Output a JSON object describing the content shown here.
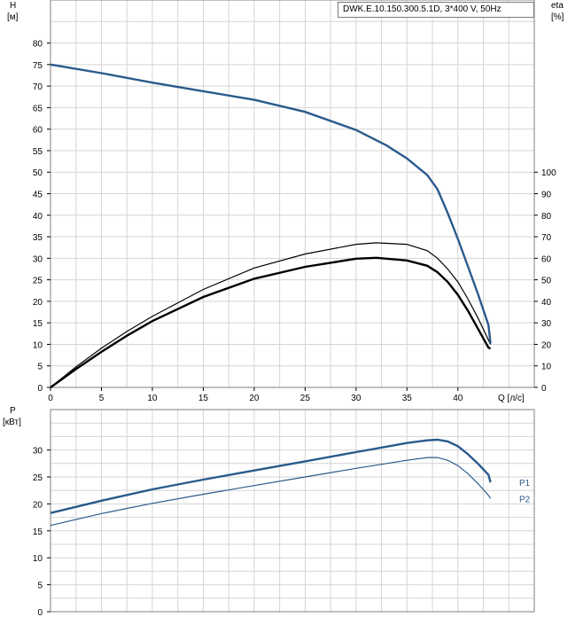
{
  "chart_data": [
    {
      "type": "line",
      "name": "head-efficiency",
      "title": "DWK.E.10.150.300.5.1D, 3*400 V, 50Hz",
      "xlabel": "Q [л/с]",
      "ylabel": "H",
      "ylabel_unit": "[м]",
      "y2label": "eta",
      "y2label_unit": "[%]",
      "xlim": [
        0,
        47.5
      ],
      "ylim": [
        0,
        90
      ],
      "y2lim": [
        0,
        180
      ],
      "x_ticks": [
        0,
        5,
        10,
        15,
        20,
        25,
        30,
        35,
        40
      ],
      "y_ticks": [
        0,
        5,
        10,
        15,
        20,
        25,
        30,
        35,
        40,
        45,
        50,
        55,
        60,
        65,
        70,
        75,
        80
      ],
      "y2_ticks": [
        0,
        10,
        20,
        30,
        40,
        50,
        60,
        70,
        80,
        90,
        100
      ],
      "grid": true,
      "colors": {
        "H": "#2a5a8c",
        "eta": "#000000"
      },
      "series": [
        {
          "name": "H",
          "axis": "left",
          "x": [
            0,
            5,
            10,
            15,
            20,
            25,
            30,
            33,
            35,
            37,
            38,
            39,
            40,
            41,
            42,
            43,
            43.2
          ],
          "y": [
            75,
            73,
            70.8,
            68.8,
            66.8,
            64,
            59.8,
            56.2,
            53.2,
            49.3,
            46,
            40.5,
            34.5,
            28,
            21.5,
            14.5,
            10.2
          ]
        },
        {
          "axis": "right",
          "x": [
            0,
            2.5,
            5,
            7.5,
            10,
            15,
            20,
            25,
            30,
            32,
            35,
            37,
            38,
            39,
            40,
            41,
            42,
            43,
            43.2
          ],
          "y": [
            0,
            9.5,
            18.2,
            26,
            33,
            45.5,
            55.5,
            62,
            66.5,
            67.2,
            66.5,
            63.5,
            60,
            55,
            49,
            41,
            32,
            22,
            20
          ]
        },
        {
          "axis": "right",
          "x": [
            0,
            2.5,
            5,
            7.5,
            10,
            15,
            20,
            25,
            30,
            32,
            35,
            37,
            38,
            39,
            40,
            41,
            42,
            43,
            43.2
          ],
          "y": [
            0,
            8.5,
            16.5,
            24,
            30.8,
            42,
            50.5,
            56,
            59.8,
            60.2,
            59,
            56.5,
            53.5,
            49,
            43,
            35.5,
            27,
            18.5,
            18
          ]
        }
      ]
    },
    {
      "type": "line",
      "name": "power",
      "ylabel": "P",
      "ylabel_unit": "[кВт]",
      "xlim": [
        0,
        47.5
      ],
      "ylim": [
        0,
        37.5
      ],
      "y_ticks": [
        0,
        5,
        10,
        15,
        20,
        25,
        30
      ],
      "grid": true,
      "colors": {
        "P1": "#2a5a8c",
        "P2": "#2a5a8c"
      },
      "series": [
        {
          "name": "P1",
          "x": [
            0,
            5,
            10,
            15,
            20,
            25,
            30,
            35,
            37,
            38,
            39,
            40,
            41,
            42,
            43,
            43.2
          ],
          "y": [
            18.3,
            20.6,
            22.7,
            24.5,
            26.2,
            27.9,
            29.6,
            31.3,
            31.8,
            31.9,
            31.6,
            30.7,
            29.2,
            27.4,
            25.4,
            24
          ]
        },
        {
          "name": "P2",
          "x": [
            0,
            5,
            10,
            15,
            20,
            25,
            30,
            35,
            37,
            38,
            39,
            40,
            41,
            42,
            43,
            43.2
          ],
          "y": [
            16,
            18.2,
            20.1,
            21.8,
            23.4,
            25,
            26.6,
            28.1,
            28.6,
            28.6,
            28.1,
            27.1,
            25.6,
            23.7,
            21.6,
            21
          ]
        }
      ]
    }
  ]
}
